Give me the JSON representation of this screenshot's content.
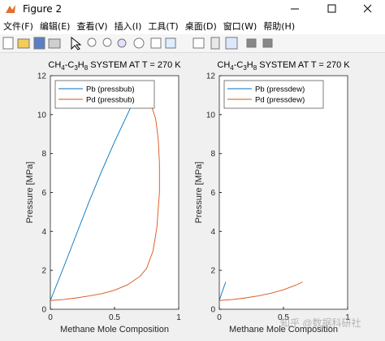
{
  "window": {
    "title": "Figure 2"
  },
  "menu": {
    "items": [
      "文件(F)",
      "编辑(E)",
      "查看(V)",
      "插入(I)",
      "工具(T)",
      "桌面(D)",
      "窗口(W)",
      "帮助(H)"
    ]
  },
  "watermark": "知乎 @数据科研社",
  "chart_data": [
    {
      "type": "line",
      "title": "CH4-C3H8 SYSTEM AT T = 270 K",
      "xlabel": "Methane Mole Composition",
      "ylabel": "Pressure [MPa]",
      "xlim": [
        0,
        1
      ],
      "ylim": [
        0,
        12
      ],
      "xticks": [
        0,
        0.5,
        1
      ],
      "yticks": [
        0,
        2,
        4,
        6,
        8,
        10,
        12
      ],
      "legend": "upper left",
      "series": [
        {
          "name": "Pb (pressbub)",
          "color": "#0072bd",
          "x": [
            0,
            0.1,
            0.2,
            0.3,
            0.4,
            0.5,
            0.6,
            0.67
          ],
          "values": [
            0.45,
            2.1,
            3.8,
            5.5,
            7.1,
            8.6,
            10.0,
            11.0
          ]
        },
        {
          "name": "Pd (pressbub)",
          "color": "#d95319",
          "x": [
            0,
            0.1,
            0.2,
            0.3,
            0.4,
            0.5,
            0.6,
            0.7,
            0.75,
            0.8,
            0.83,
            0.85,
            0.85,
            0.84,
            0.82,
            0.79,
            0.75
          ],
          "values": [
            0.45,
            0.5,
            0.58,
            0.68,
            0.8,
            0.98,
            1.25,
            1.7,
            2.1,
            3.0,
            4.2,
            6.0,
            7.5,
            8.8,
            9.8,
            10.4,
            10.6
          ]
        }
      ]
    },
    {
      "type": "line",
      "title": "CH4-C3H8 SYSTEM AT T = 270 K",
      "xlabel": "Methane Mole Composition",
      "ylabel": "Pressure [MPa]",
      "xlim": [
        0,
        1
      ],
      "ylim": [
        0,
        12
      ],
      "xticks": [
        0,
        0.5,
        1
      ],
      "yticks": [
        0,
        2,
        4,
        6,
        8,
        10,
        12
      ],
      "legend": "upper left",
      "series": [
        {
          "name": "Pb (pressdew)",
          "color": "#0072bd",
          "x": [
            0,
            0.02,
            0.05
          ],
          "values": [
            0.45,
            0.85,
            1.4
          ]
        },
        {
          "name": "Pd (pressdew)",
          "color": "#d95319",
          "x": [
            0,
            0.1,
            0.2,
            0.3,
            0.4,
            0.5,
            0.6,
            0.65
          ],
          "values": [
            0.45,
            0.5,
            0.58,
            0.68,
            0.82,
            1.0,
            1.25,
            1.4
          ]
        }
      ]
    }
  ]
}
